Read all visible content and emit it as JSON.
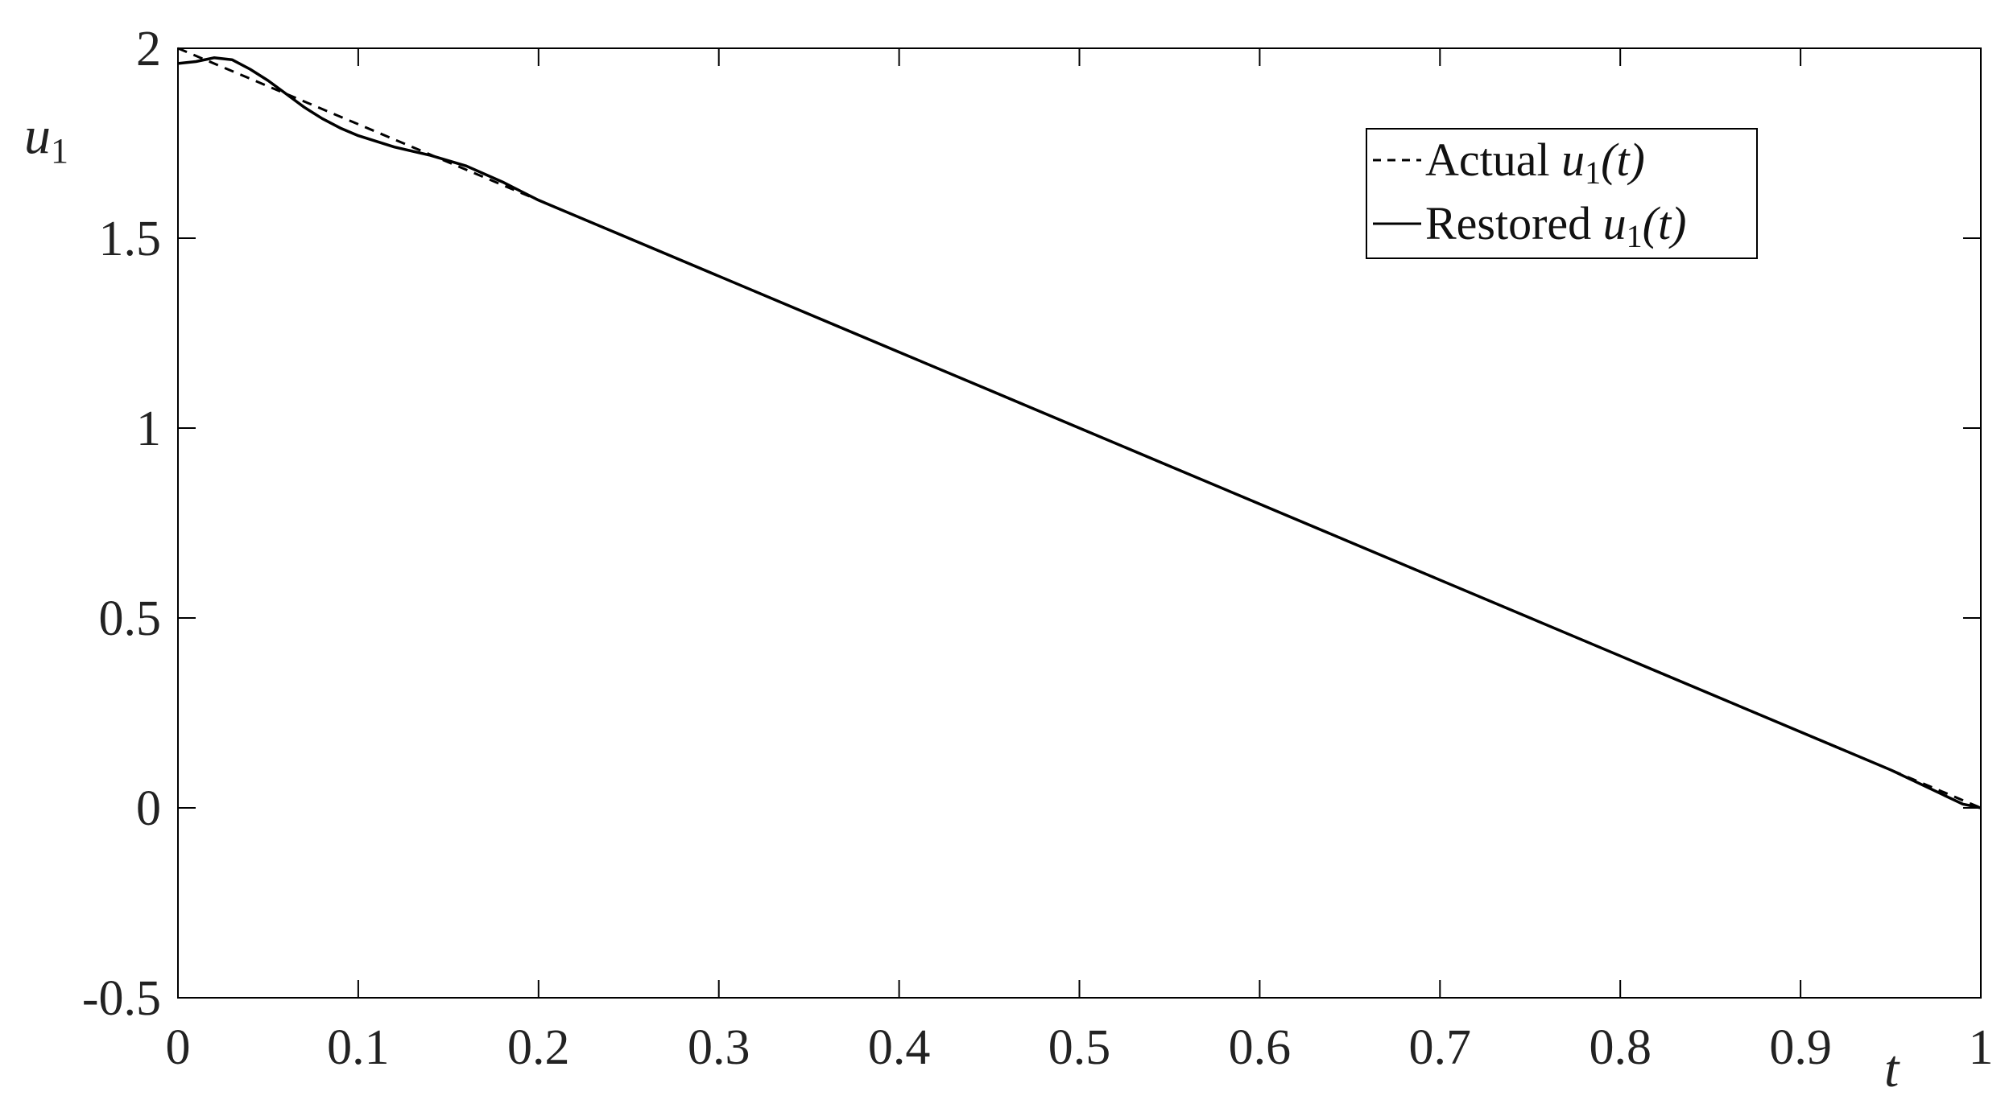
{
  "chart_data": {
    "type": "line",
    "title": "",
    "xlabel": "t",
    "ylabel": {
      "base": "u",
      "sub": "1"
    },
    "xlim": [
      0,
      1
    ],
    "ylim": [
      -0.5,
      2
    ],
    "xticks": [
      0,
      0.1,
      0.2,
      0.3,
      0.4,
      0.5,
      0.6,
      0.7,
      0.8,
      0.9,
      1
    ],
    "xtick_labels": [
      "0",
      "0.1",
      "0.2",
      "0.3",
      "0.4",
      "0.5",
      "0.6",
      "0.7",
      "0.8",
      "0.9",
      "1"
    ],
    "yticks": [
      -0.5,
      0,
      0.5,
      1,
      1.5,
      2
    ],
    "ytick_labels": [
      "-0.5",
      "0",
      "0.5",
      "1",
      "1.5",
      "2"
    ],
    "grid": false,
    "legend_position": "top-right",
    "series": [
      {
        "name": {
          "prefix": "Actual ",
          "var": "u",
          "sub": "1",
          "suffix": "(t)"
        },
        "style": "dashed",
        "color": "#000000",
        "x": [
          0,
          1
        ],
        "y": [
          2,
          0
        ]
      },
      {
        "name": {
          "prefix": "Restored ",
          "var": "u",
          "sub": "1",
          "suffix": "(t)"
        },
        "style": "solid",
        "color": "#000000",
        "x": [
          0,
          0.01,
          0.02,
          0.03,
          0.04,
          0.05,
          0.06,
          0.07,
          0.08,
          0.09,
          0.1,
          0.12,
          0.14,
          0.16,
          0.18,
          0.2,
          0.25,
          0.3,
          0.35,
          0.4,
          0.45,
          0.5,
          0.55,
          0.6,
          0.65,
          0.7,
          0.75,
          0.8,
          0.85,
          0.9,
          0.95,
          0.99,
          1
        ],
        "y": [
          1.96,
          1.965,
          1.975,
          1.97,
          1.945,
          1.915,
          1.88,
          1.845,
          1.815,
          1.79,
          1.77,
          1.74,
          1.718,
          1.69,
          1.648,
          1.6,
          1.5,
          1.4,
          1.3,
          1.2,
          1.1,
          1.0,
          0.9,
          0.8,
          0.7,
          0.6,
          0.5,
          0.4,
          0.3,
          0.2,
          0.1,
          0.01,
          0.0
        ]
      }
    ]
  }
}
